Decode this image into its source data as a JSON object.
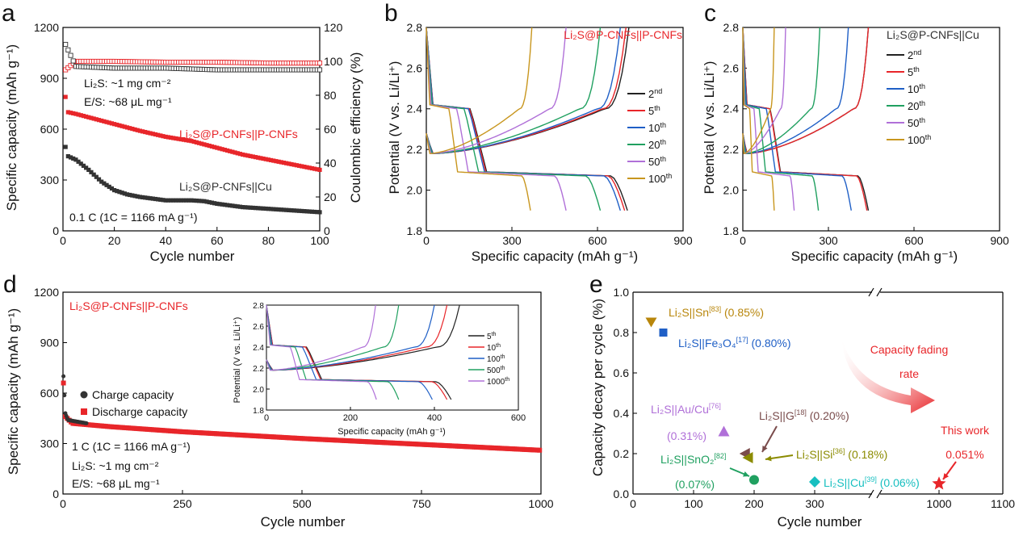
{
  "figure": {
    "panels": {
      "a": {
        "letter": "a",
        "ylabel_left": "Specific capacity (mAh g⁻¹)",
        "ylabel_right": "Coulombic efficiency (%)",
        "xlabel": "Cycle number",
        "ann_loading": "Li₂S: ~1 mg cm⁻²",
        "ann_es": "E/S: ~68 μL mg⁻¹",
        "ann_rate": "0.1 C (1C = 1166 mA g⁻¹)",
        "label_pcnf": "Li₂S@P-CNFs||P-CNFs",
        "label_cu": "Li₂S@P-CNFs||Cu"
      },
      "b": {
        "letter": "b",
        "ylabel": "Potential (V vs. Li/Li⁺)",
        "xlabel": "Specific capacity (mAh g⁻¹)",
        "title": "Li₂S@P-CNFs||P-CNFs"
      },
      "c": {
        "letter": "c",
        "ylabel": "Potential (V vs. Li/Li⁺)",
        "xlabel": "Specific capacity (mAh g⁻¹)",
        "title": "Li₂S@P-CNFs||Cu"
      },
      "d": {
        "letter": "d",
        "ylabel": "Specific capacity (mAh g⁻¹)",
        "xlabel": "Cycle number",
        "title": "Li₂S@P-CNFs||P-CNFs",
        "legend_charge": "Charge capacity",
        "legend_discharge": "Discharge capacity",
        "ann_rate": "1 C (1C = 1166 mA g⁻¹)",
        "ann_loading": "Li₂S: ~1 mg cm⁻²",
        "ann_es": "E/S: ~68 μL mg⁻¹",
        "inset_ylabel": "Potential (V vs. Li/Li⁺)",
        "inset_xlabel": "Specific capacity (mAh g⁻¹)"
      },
      "e": {
        "letter": "e",
        "ylabel": "Capacity decay per cycle (%)",
        "xlabel": "Cycle number",
        "arrow_label_1": "Capacity fading",
        "arrow_label_2": "rate",
        "this_work_1": "This work",
        "this_work_2": "0.051%"
      }
    }
  },
  "chart_data": [
    {
      "panel": "a",
      "type": "scatter",
      "x_range": [
        0,
        100
      ],
      "y_left_range": [
        0,
        1200
      ],
      "y_right_range": [
        0,
        120
      ],
      "x_ticks": [
        0,
        20,
        40,
        60,
        80,
        100
      ],
      "y_left_ticks": [
        0,
        300,
        600,
        900,
        1200
      ],
      "y_right_ticks": [
        0,
        20,
        40,
        60,
        80,
        100,
        120
      ],
      "series": [
        {
          "name": "Li₂S@P-CNFs||P-CNFs capacity",
          "color": "#e8262a",
          "marker": "square",
          "x": [
            1,
            2,
            5,
            10,
            20,
            30,
            40,
            50,
            60,
            70,
            80,
            90,
            100
          ],
          "y": [
            790,
            700,
            690,
            670,
            630,
            590,
            555,
            530,
            490,
            450,
            420,
            390,
            360
          ]
        },
        {
          "name": "Li₂S@P-CNFs||Cu capacity",
          "color": "#333333",
          "marker": "square",
          "x": [
            1,
            2,
            5,
            10,
            15,
            20,
            25,
            30,
            40,
            50,
            55,
            60,
            70,
            80,
            90,
            100
          ],
          "y": [
            495,
            440,
            420,
            360,
            290,
            240,
            215,
            200,
            180,
            180,
            175,
            160,
            140,
            130,
            120,
            110
          ]
        },
        {
          "name": "Li₂S@P-CNFs||P-CNFs CE",
          "color": "#e8262a",
          "marker": "open-square",
          "x": [
            1,
            5,
            20,
            40,
            60,
            80,
            100
          ],
          "y": [
            95,
            100,
            100,
            99.5,
            99.5,
            99,
            99
          ]
        },
        {
          "name": "Li₂S@P-CNFs||Cu CE",
          "color": "#333333",
          "marker": "open-square",
          "x": [
            1,
            5,
            20,
            40,
            60,
            80,
            100
          ],
          "y": [
            110,
            97,
            96,
            96,
            95,
            95,
            95
          ]
        }
      ]
    },
    {
      "panel": "b",
      "type": "line",
      "x_range": [
        0,
        900
      ],
      "y_range": [
        1.8,
        2.8
      ],
      "x_ticks": [
        0,
        300,
        600,
        900
      ],
      "y_ticks": [
        1.8,
        2.0,
        2.2,
        2.4,
        2.6,
        2.8
      ],
      "series": [
        {
          "name": "2nd",
          "label_main": "2",
          "label_sup": "nd",
          "color": "#222222",
          "charge_end": 710,
          "discharge_end": 705
        },
        {
          "name": "5th",
          "label_main": "5",
          "label_sup": "th",
          "color": "#e8262a",
          "charge_end": 700,
          "discharge_end": 695
        },
        {
          "name": "10th",
          "label_main": "10",
          "label_sup": "th",
          "color": "#1f5fc6",
          "charge_end": 680,
          "discharge_end": 680
        },
        {
          "name": "20th",
          "label_main": "20",
          "label_sup": "th",
          "color": "#20a060",
          "charge_end": 610,
          "discharge_end": 610
        },
        {
          "name": "50th",
          "label_main": "50",
          "label_sup": "th",
          "color": "#b070d8",
          "charge_end": 490,
          "discharge_end": 490
        },
        {
          "name": "100th",
          "label_main": "100",
          "label_sup": "th",
          "color": "#c8961e",
          "charge_end": 370,
          "discharge_end": 365
        }
      ]
    },
    {
      "panel": "c",
      "type": "line",
      "x_range": [
        0,
        900
      ],
      "y_range": [
        1.8,
        2.8
      ],
      "x_ticks": [
        0,
        300,
        600,
        900
      ],
      "y_ticks": [
        1.8,
        2.0,
        2.2,
        2.4,
        2.6,
        2.8
      ],
      "series": [
        {
          "name": "2nd",
          "label_main": "2",
          "label_sup": "nd",
          "color": "#222222",
          "charge_end": 440,
          "discharge_end": 440
        },
        {
          "name": "5th",
          "label_main": "5",
          "label_sup": "th",
          "color": "#e8262a",
          "charge_end": 440,
          "discharge_end": 435
        },
        {
          "name": "10th",
          "label_main": "10",
          "label_sup": "th",
          "color": "#1f5fc6",
          "charge_end": 370,
          "discharge_end": 380
        },
        {
          "name": "20th",
          "label_main": "20",
          "label_sup": "th",
          "color": "#20a060",
          "charge_end": 270,
          "discharge_end": 265
        },
        {
          "name": "50th",
          "label_main": "50",
          "label_sup": "th",
          "color": "#b070d8",
          "charge_end": 150,
          "discharge_end": 180
        },
        {
          "name": "100th",
          "label_main": "100",
          "label_sup": "th",
          "color": "#c8961e",
          "charge_end": 110,
          "discharge_end": 110
        }
      ]
    },
    {
      "panel": "d",
      "type": "scatter",
      "x_range": [
        0,
        1000
      ],
      "y_range": [
        0,
        1200
      ],
      "x_ticks": [
        0,
        250,
        500,
        750,
        1000
      ],
      "y_ticks": [
        0,
        300,
        600,
        900,
        1200
      ],
      "series": [
        {
          "name": "Charge capacity",
          "color": "#333333",
          "x": [
            1,
            2,
            5,
            10,
            50
          ],
          "y": [
            700,
            640,
            480,
            440,
            420
          ]
        },
        {
          "name": "Discharge capacity",
          "color": "#e8262a",
          "x": [
            1,
            5,
            20,
            100,
            250,
            500,
            750,
            1000
          ],
          "y": [
            660,
            460,
            420,
            400,
            370,
            330,
            295,
            260
          ]
        }
      ],
      "inset": {
        "type": "line",
        "x_range": [
          0,
          600
        ],
        "y_range": [
          1.8,
          2.8
        ],
        "x_ticks": [
          0,
          200,
          400,
          600
        ],
        "y_ticks": [
          1.8,
          2.0,
          2.2,
          2.4,
          2.6,
          2.8
        ],
        "series": [
          {
            "name": "5th",
            "label_main": "5",
            "label_sup": "th",
            "color": "#222222",
            "charge_end": 460,
            "discharge_end": 440
          },
          {
            "name": "10th",
            "label_main": "10",
            "label_sup": "th",
            "color": "#e8262a",
            "charge_end": 430,
            "discharge_end": 430
          },
          {
            "name": "100th",
            "label_main": "100",
            "label_sup": "th",
            "color": "#1f5fc6",
            "charge_end": 400,
            "discharge_end": 395
          },
          {
            "name": "500th",
            "label_main": "500",
            "label_sup": "th",
            "color": "#20a060",
            "charge_end": 315,
            "discharge_end": 315
          },
          {
            "name": "1000th",
            "label_main": "1000",
            "label_sup": "th",
            "color": "#b070d8",
            "charge_end": 260,
            "discharge_end": 262
          }
        ]
      }
    },
    {
      "panel": "e",
      "type": "scatter",
      "y_range": [
        0,
        1.0
      ],
      "x_segments": [
        [
          0,
          400
        ],
        [
          900,
          1100
        ]
      ],
      "x_ticks": [
        0,
        100,
        200,
        300,
        1000,
        1100
      ],
      "y_ticks": [
        0.0,
        0.2,
        0.4,
        0.6,
        0.8,
        1.0
      ],
      "points": [
        {
          "x": 30,
          "y": 0.85,
          "marker": "tri-down",
          "color": "#b8860b",
          "pre": "Li₂S||Sn",
          "sup": "[83]",
          "post": " (0.85%)"
        },
        {
          "x": 50,
          "y": 0.8,
          "marker": "square",
          "color": "#1f5fc6",
          "pre": "Li₂S||Fe₃O₄",
          "sup": "[17]",
          "post": " (0.80%)"
        },
        {
          "x": 150,
          "y": 0.31,
          "marker": "tri-up",
          "color": "#b070d8",
          "pre": "Li₂S||Au/Cu",
          "sup": "[76]",
          "post": "(0.31%)"
        },
        {
          "x": 185,
          "y": 0.2,
          "marker": "tri-left",
          "color": "#7a4c4c",
          "pre": "Li₂S||G",
          "sup": "[18]",
          "post": " (0.20%)"
        },
        {
          "x": 190,
          "y": 0.18,
          "marker": "tri-left",
          "color": "#8b8b00",
          "pre": "Li₂S||Si",
          "sup": "[36]",
          "post": " (0.18%)"
        },
        {
          "x": 200,
          "y": 0.07,
          "marker": "circle",
          "color": "#20a060",
          "pre": "Li₂S||SnO₂",
          "sup": "[82]",
          "post": "(0.07%)"
        },
        {
          "x": 300,
          "y": 0.06,
          "marker": "diamond",
          "color": "#17bfc0",
          "pre": "Li₂S||Cu",
          "sup": "[39]",
          "post": " (0.06%)"
        },
        {
          "x": 1000,
          "y": 0.051,
          "marker": "star",
          "color": "#e8262a",
          "pre": "This work",
          "sup": "",
          "post": ""
        }
      ]
    }
  ]
}
